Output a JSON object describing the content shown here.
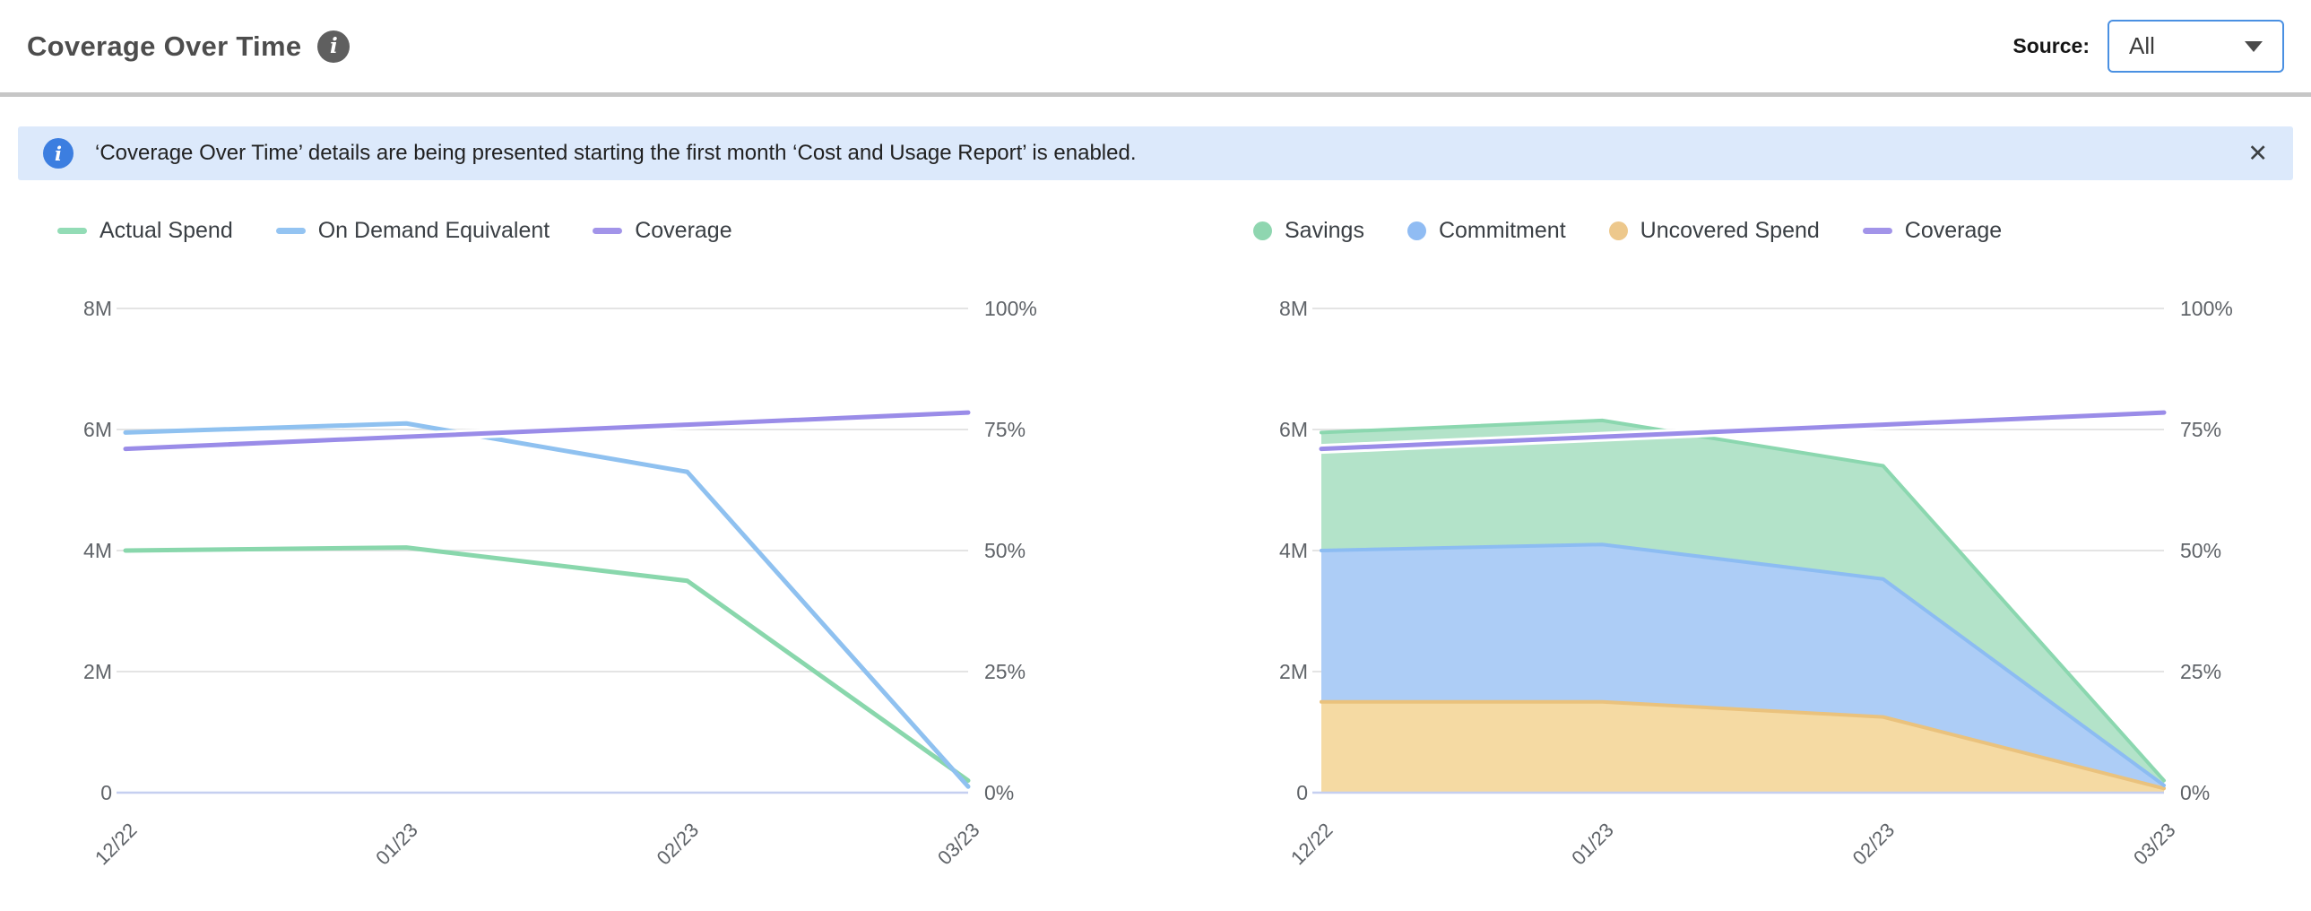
{
  "header": {
    "title": "Coverage Over Time",
    "info_icon": "i",
    "source_label": "Source:",
    "source_value": "All"
  },
  "banner": {
    "icon": "i",
    "text": "‘Coverage Over Time’ details are being presented starting the first month ‘Cost and Usage Report’ is enabled.",
    "close_glyph": "✕"
  },
  "colors": {
    "accent_border": "#4a90e2",
    "banner_bg": "#dce9fb",
    "banner_icon_bg": "#3c7ee0",
    "grid_line": "#e4e4e4",
    "zero_axis_line": "#c5cff0",
    "tick_label": "#5f6368"
  },
  "chart_data": [
    {
      "type": "line",
      "title": "Actual Spend vs On Demand Equivalent with Coverage",
      "categories": [
        "12/22",
        "01/23",
        "02/23",
        "03/23"
      ],
      "left_axis": {
        "ticks": [
          "8M",
          "6M",
          "4M",
          "2M",
          "0"
        ],
        "max": 8,
        "unit": "M"
      },
      "right_axis": {
        "ticks": [
          "100%",
          "75%",
          "50%",
          "25%",
          "0%"
        ],
        "max": 100,
        "unit": "%"
      },
      "grid": true,
      "legend_position": "top-left",
      "legend": [
        {
          "label": "Actual Spend",
          "swatch": "line",
          "color": "#93dcb6"
        },
        {
          "label": "On Demand Equivalent",
          "swatch": "line",
          "color": "#94c4f2"
        },
        {
          "label": "Coverage",
          "swatch": "line",
          "color": "#a294e9"
        }
      ],
      "series": [
        {
          "name": "Actual Spend",
          "kind": "line",
          "axis": "left",
          "color": "#89d7ac",
          "values": [
            4.0,
            4.05,
            3.5,
            0.2
          ]
        },
        {
          "name": "On Demand Equivalent",
          "kind": "line",
          "axis": "left",
          "color": "#8fc1f0",
          "values": [
            5.95,
            6.1,
            5.3,
            0.1
          ]
        },
        {
          "name": "Coverage",
          "kind": "line",
          "axis": "right",
          "color": "#9a8ce8",
          "halo": true,
          "values": [
            71,
            73.5,
            76,
            78.5
          ]
        }
      ]
    },
    {
      "type": "area",
      "title": "Savings, Commitment and Uncovered Spend with Coverage",
      "categories": [
        "12/22",
        "01/23",
        "02/23",
        "03/23"
      ],
      "left_axis": {
        "ticks": [
          "8M",
          "6M",
          "4M",
          "2M",
          "0"
        ],
        "max": 8,
        "unit": "M"
      },
      "right_axis": {
        "ticks": [
          "100%",
          "75%",
          "50%",
          "25%",
          "0%"
        ],
        "max": 100,
        "unit": "%"
      },
      "grid": true,
      "stacked": true,
      "legend_position": "top-left",
      "legend": [
        {
          "label": "Savings",
          "swatch": "circle",
          "color": "#8fd6b0"
        },
        {
          "label": "Commitment",
          "swatch": "circle",
          "color": "#90bcf3"
        },
        {
          "label": "Uncovered Spend",
          "swatch": "circle",
          "color": "#edc88c"
        },
        {
          "label": "Coverage",
          "swatch": "line",
          "color": "#a294e9"
        }
      ],
      "series": [
        {
          "name": "Uncovered Spend",
          "kind": "area",
          "axis": "left",
          "fill": "#f5daa3",
          "line": "#eac27d",
          "values": [
            1.5,
            1.5,
            1.25,
            0.07
          ]
        },
        {
          "name": "Commitment",
          "kind": "area",
          "axis": "left",
          "fill": "#adcdf6",
          "line": "#8cbcf2",
          "values": [
            2.5,
            2.6,
            2.28,
            0.05
          ]
        },
        {
          "name": "Savings",
          "kind": "area",
          "axis": "left",
          "fill": "#b3e3c9",
          "line": "#8bd7af",
          "values": [
            1.95,
            2.05,
            1.87,
            0.08
          ]
        },
        {
          "name": "Coverage",
          "kind": "line",
          "axis": "right",
          "color": "#9a8ce8",
          "halo": true,
          "values": [
            71,
            73.5,
            76,
            78.5
          ]
        }
      ]
    }
  ]
}
